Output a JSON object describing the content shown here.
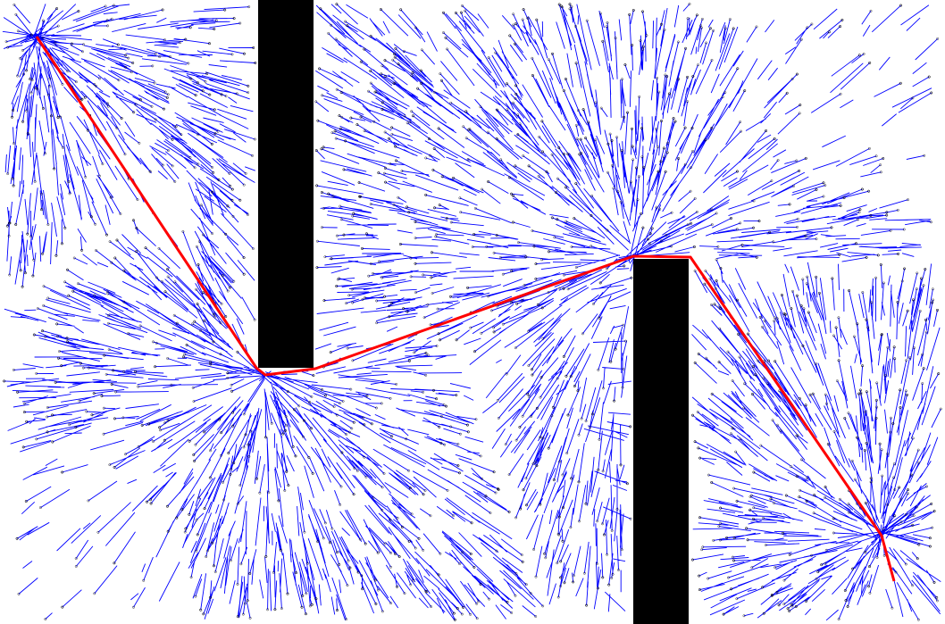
{
  "colors": {
    "background": "#ffffff",
    "tree_edges": "#0000ff",
    "tree_nodes": "#000000",
    "obstacles": "#000000",
    "path": "#ff0000"
  },
  "scene": {
    "description_type": "rrt-path-planning",
    "obstacle_count": 2,
    "start_point": "top-left",
    "goal_point": "bottom-right"
  }
}
